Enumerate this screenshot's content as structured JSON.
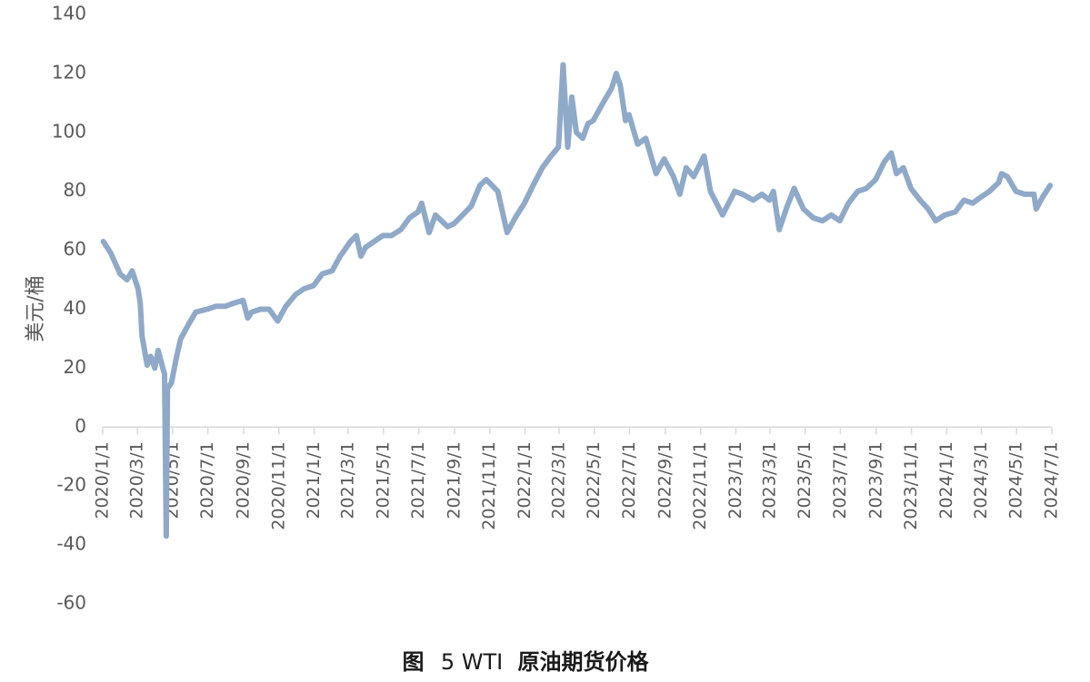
{
  "chart_data": {
    "type": "line",
    "title": "图 5 WTI 原油期货价格",
    "title_prefix": "图",
    "title_number": "5 WTI",
    "title_main": "原油期货价格",
    "xlabel": "",
    "ylabel": "美元/桶",
    "ylim": [
      -60,
      140
    ],
    "yticks": [
      "140",
      "120",
      "100",
      "80",
      "60",
      "40",
      "20",
      "0",
      "-20",
      "-40",
      "-60"
    ],
    "xlim": [
      "2020/1/1",
      "2024/7/1"
    ],
    "xticks": [
      "2020/1/1",
      "2020/3/1",
      "2020/5/1",
      "2020/7/1",
      "2020/9/1",
      "2020/11/1",
      "2021/1/1",
      "2021/3/1",
      "2021/5/1",
      "2021/7/1",
      "2021/9/1",
      "2021/11/1",
      "2022/1/1",
      "2022/3/1",
      "2022/5/1",
      "2022/7/1",
      "2022/9/1",
      "2022/11/1",
      "2023/1/1",
      "2023/3/1",
      "2023/5/1",
      "2023/7/1",
      "2023/9/1",
      "2023/11/1",
      "2024/1/1",
      "2024/3/1",
      "2024/5/1",
      "2024/7/1"
    ],
    "grid": false,
    "legend": "none",
    "line_color": "#8fa9c8",
    "series": [
      {
        "x": [
          "2020/1/2",
          "2020/1/15",
          "2020/1/31",
          "2020/2/12",
          "2020/2/21",
          "2020/3/2",
          "2020/3/6",
          "2020/3/9",
          "2020/3/18",
          "2020/3/24",
          "2020/3/31",
          "2020/4/6",
          "2020/4/14",
          "2020/4/17",
          "2020/4/20",
          "2020/4/22",
          "2020/4/29",
          "2020/5/8",
          "2020/5/15",
          "2020/5/29",
          "2020/6/10",
          "2020/6/30",
          "2020/7/15",
          "2020/7/31",
          "2020/8/14",
          "2020/8/31",
          "2020/9/8",
          "2020/9/15",
          "2020/9/30",
          "2020/10/15",
          "2020/10/30",
          "2020/11/13",
          "2020/11/30",
          "2020/12/15",
          "2020/12/31",
          "2021/1/15",
          "2021/2/1",
          "2021/2/15",
          "2021/3/5",
          "2021/3/15",
          "2021/3/23",
          "2021/3/31",
          "2021/4/15",
          "2021/4/30",
          "2021/5/15",
          "2021/5/31",
          "2021/6/15",
          "2021/6/30",
          "2021/7/6",
          "2021/7/19",
          "2021/7/30",
          "2021/8/20",
          "2021/8/31",
          "2021/9/15",
          "2021/9/30",
          "2021/10/15",
          "2021/10/26",
          "2021/11/15",
          "2021/12/1",
          "2021/12/15",
          "2021/12/31",
          "2022/1/15",
          "2022/1/31",
          "2022/2/15",
          "2022/2/28",
          "2022/3/8",
          "2022/3/16",
          "2022/3/23",
          "2022/3/31",
          "2022/4/11",
          "2022/4/20",
          "2022/4/29",
          "2022/5/16",
          "2022/5/31",
          "2022/6/8",
          "2022/6/15",
          "2022/6/24",
          "2022/6/30",
          "2022/7/15",
          "2022/7/29",
          "2022/8/16",
          "2022/8/30",
          "2022/9/15",
          "2022/9/26",
          "2022/10/7",
          "2022/10/20",
          "2022/11/7",
          "2022/11/18",
          "2022/12/9",
          "2022/12/30",
          "2023/1/13",
          "2023/1/31",
          "2023/2/15",
          "2023/2/28",
          "2023/3/7",
          "2023/3/17",
          "2023/3/31",
          "2023/4/12",
          "2023/4/28",
          "2023/5/15",
          "2023/5/31",
          "2023/6/15",
          "2023/6/30",
          "2023/7/15",
          "2023/7/31",
          "2023/8/15",
          "2023/8/31",
          "2023/9/15",
          "2023/9/27",
          "2023/10/6",
          "2023/10/18",
          "2023/10/31",
          "2023/11/16",
          "2023/11/30",
          "2023/12/13",
          "2023/12/29",
          "2024/1/16",
          "2024/1/31",
          "2024/2/15",
          "2024/2/29",
          "2024/3/15",
          "2024/3/31",
          "2024/4/5",
          "2024/4/15",
          "2024/4/30",
          "2024/5/15",
          "2024/5/31",
          "2024/6/4",
          "2024/6/15",
          "2024/6/28"
        ],
        "y": [
          63,
          59,
          52,
          50,
          53,
          47,
          42,
          31,
          21,
          24,
          20,
          26,
          20,
          18,
          -37,
          13,
          15,
          24,
          30,
          35,
          39,
          40,
          41,
          41,
          42,
          43,
          37,
          39,
          40,
          40,
          36,
          41,
          45,
          47,
          48,
          52,
          53,
          58,
          63,
          65,
          58,
          61,
          63,
          65,
          65,
          67,
          71,
          73,
          76,
          66,
          72,
          68,
          69,
          72,
          75,
          82,
          84,
          80,
          66,
          71,
          76,
          82,
          88,
          92,
          95,
          123,
          95,
          112,
          100,
          98,
          103,
          104,
          110,
          115,
          120,
          116,
          104,
          106,
          96,
          98,
          86,
          91,
          85,
          79,
          88,
          85,
          92,
          80,
          72,
          80,
          79,
          77,
          79,
          77,
          80,
          67,
          75,
          81,
          74,
          71,
          70,
          72,
          70,
          76,
          80,
          81,
          84,
          90,
          93,
          86,
          88,
          81,
          77,
          74,
          70,
          72,
          73,
          77,
          76,
          78,
          80,
          83,
          86,
          85,
          80,
          79,
          79,
          74,
          78,
          82
        ]
      }
    ]
  }
}
